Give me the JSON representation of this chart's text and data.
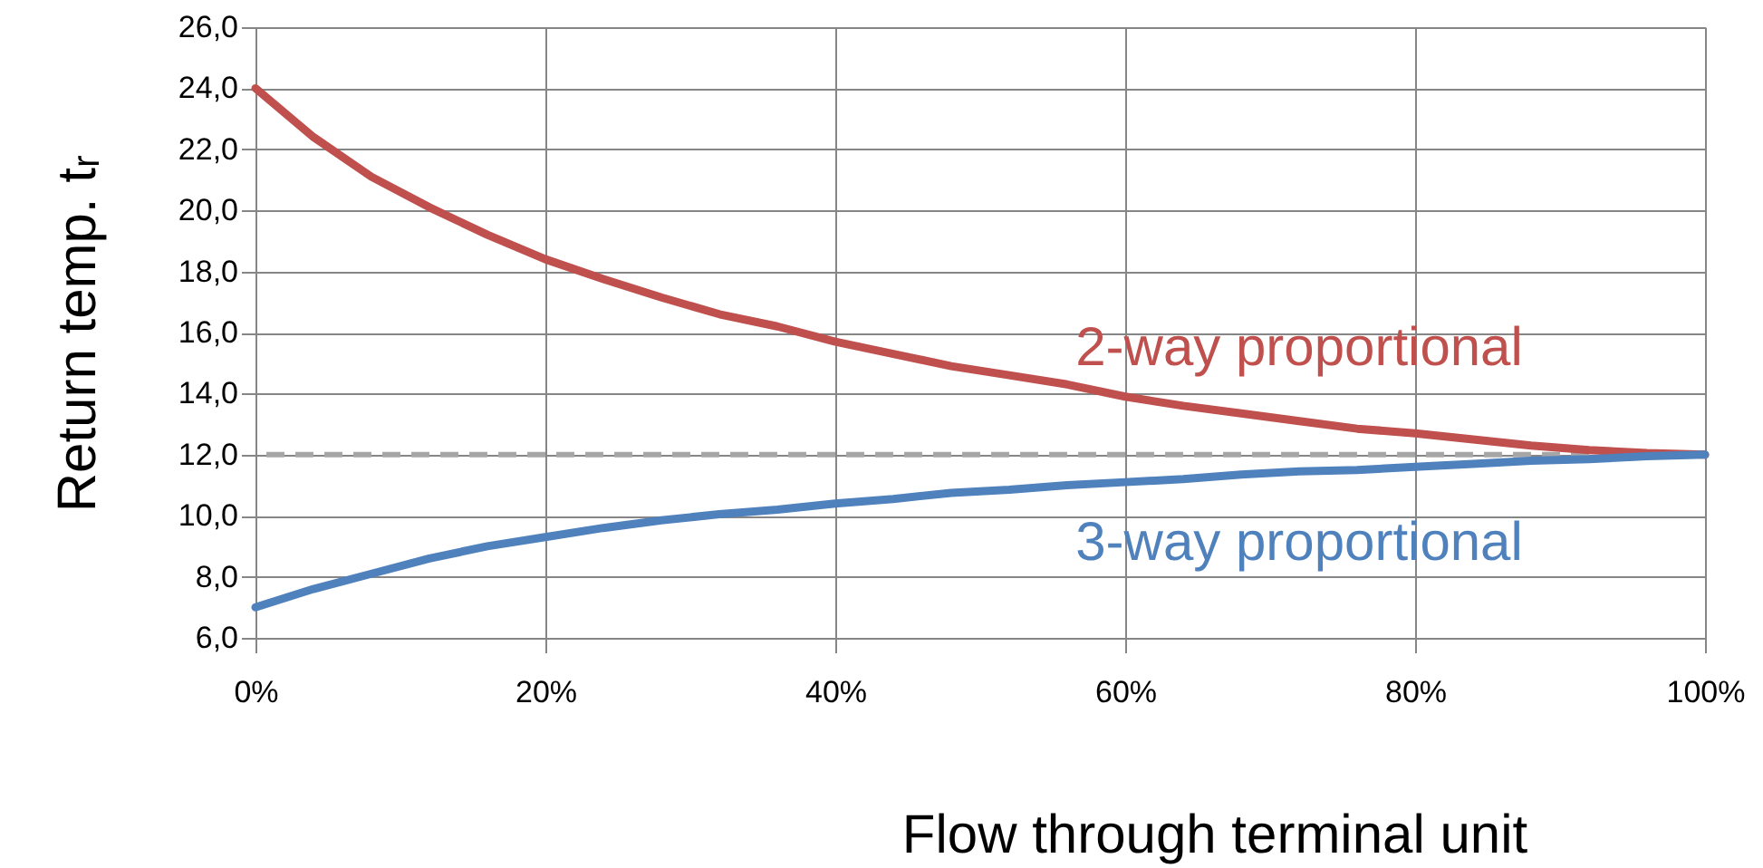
{
  "chart_data": {
    "type": "line",
    "xlabel": "Flow through terminal unit",
    "ylabel": "Return temp. tᵣ",
    "x": [
      0,
      4,
      8,
      12,
      16,
      20,
      24,
      28,
      32,
      36,
      40,
      44,
      48,
      52,
      56,
      60,
      64,
      68,
      72,
      76,
      80,
      84,
      88,
      92,
      96,
      100
    ],
    "series": [
      {
        "name": "2-way proportional",
        "color": "#c0504d",
        "values": [
          24.0,
          22.4,
          21.1,
          20.1,
          19.2,
          18.4,
          17.75,
          17.15,
          16.6,
          16.2,
          15.7,
          15.3,
          14.9,
          14.6,
          14.3,
          13.9,
          13.6,
          13.35,
          13.1,
          12.85,
          12.7,
          12.5,
          12.3,
          12.15,
          12.05,
          12.0
        ]
      },
      {
        "name": "3-way proportional",
        "color": "#4f81bd",
        "values": [
          7.0,
          7.6,
          8.1,
          8.6,
          9.0,
          9.3,
          9.6,
          9.85,
          10.05,
          10.2,
          10.4,
          10.55,
          10.75,
          10.85,
          11.0,
          11.1,
          11.2,
          11.35,
          11.45,
          11.5,
          11.6,
          11.7,
          11.8,
          11.85,
          11.95,
          12.0
        ]
      }
    ],
    "xlim": [
      0,
      100
    ],
    "xticks": [
      {
        "value": 0,
        "label": "0%"
      },
      {
        "value": 20,
        "label": "20%"
      },
      {
        "value": 40,
        "label": "40%"
      },
      {
        "value": 60,
        "label": "60%"
      },
      {
        "value": 80,
        "label": "80%"
      },
      {
        "value": 100,
        "label": "100%"
      }
    ],
    "ylim": [
      6,
      26
    ],
    "yticks": [
      {
        "value": 6,
        "label": "6,0"
      },
      {
        "value": 8,
        "label": "8,0"
      },
      {
        "value": 10,
        "label": "10,0"
      },
      {
        "value": 12,
        "label": "12,0"
      },
      {
        "value": 14,
        "label": "14,0"
      },
      {
        "value": 16,
        "label": "16,0"
      },
      {
        "value": 18,
        "label": "18,0"
      },
      {
        "value": 20,
        "label": "20,0"
      },
      {
        "value": 22,
        "label": "22,0"
      },
      {
        "value": 24,
        "label": "24,0"
      },
      {
        "value": 26,
        "label": "26,0"
      }
    ],
    "ref_lines": [
      {
        "axis": "y",
        "value": 12,
        "color": "#a6a6a6",
        "line_style": "dashed"
      }
    ],
    "grid": true,
    "legend": false,
    "marker": "none",
    "line_style": "solid"
  }
}
